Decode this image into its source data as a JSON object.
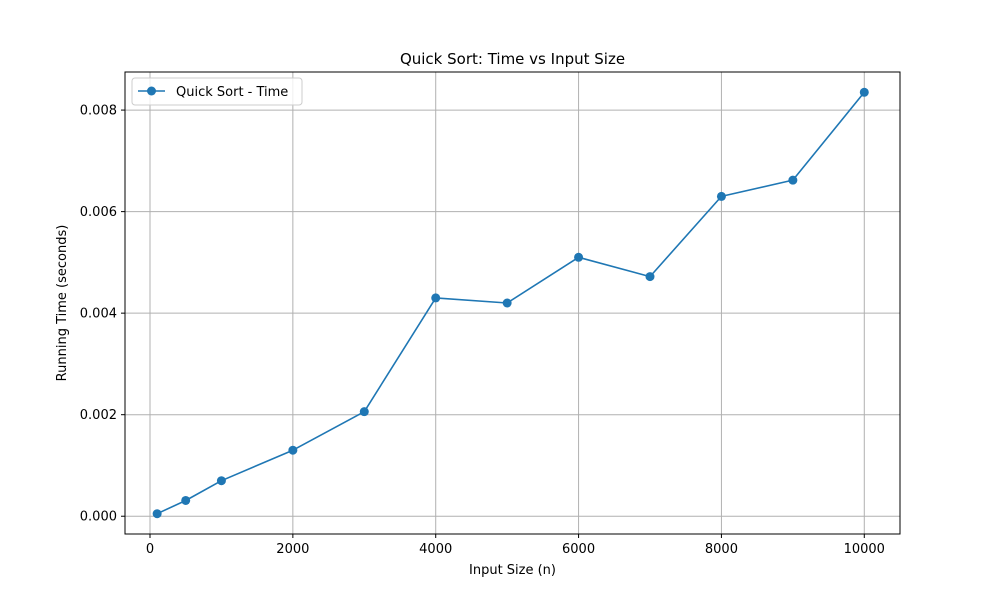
{
  "chart_data": {
    "type": "line",
    "title": "Quick Sort: Time vs Input Size",
    "xlabel": "Input Size (n)",
    "ylabel": "Running Time (seconds)",
    "xlim": [
      -350,
      10500
    ],
    "ylim": [
      -0.00035,
      0.00875
    ],
    "xticks": [
      0,
      2000,
      4000,
      6000,
      8000,
      10000
    ],
    "xtick_labels": [
      "0",
      "2000",
      "4000",
      "6000",
      "8000",
      "10000"
    ],
    "yticks": [
      0.0,
      0.002,
      0.004,
      0.006,
      0.008
    ],
    "ytick_labels": [
      "0.000",
      "0.002",
      "0.004",
      "0.006",
      "0.008"
    ],
    "grid": true,
    "legend_position": "top-left",
    "series": [
      {
        "name": "Quick Sort - Time",
        "color": "#1f77b4",
        "marker": "circle",
        "x": [
          100,
          500,
          1000,
          2000,
          3000,
          4000,
          5000,
          6000,
          7000,
          8000,
          9000,
          10000
        ],
        "y": [
          5e-05,
          0.00031,
          0.0007,
          0.0013,
          0.00206,
          0.0043,
          0.0042,
          0.0051,
          0.00472,
          0.0063,
          0.00662,
          0.00835
        ]
      }
    ]
  }
}
